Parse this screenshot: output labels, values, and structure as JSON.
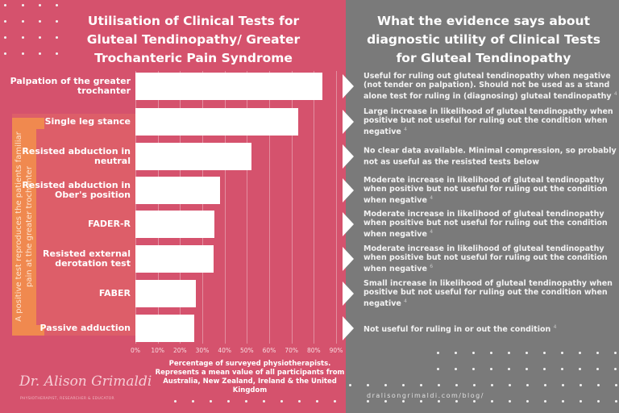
{
  "left_title": "Utilisation of Clinical Tests for Gluteal Tendinopathy/ Greater Trochanteric Pain Syndrome",
  "right_title": "What the evidence says about diagnostic utility of Clinical Tests for Gluteal Tendinopathy",
  "bracket_text": "A positive test reproduces the patients familiar pain at the greater trochanter",
  "colors": {
    "left_bg": "#d5526d",
    "right_bg": "#7a7a7a",
    "bracket": "#f0894f",
    "bar": "#ffffff"
  },
  "chart_data": {
    "type": "bar",
    "orientation": "horizontal",
    "categories": [
      "Palpation of the greater trochanter",
      "Single leg stance",
      "Resisted abduction in neutral",
      "Resisted abduction in Ober's position",
      "FADER-R",
      "Resisted external derotation test",
      "FABER",
      "Passive adduction"
    ],
    "values": [
      84,
      73,
      52,
      38,
      35.5,
      35,
      27,
      26.5
    ],
    "xlim": [
      0,
      90
    ],
    "tick_labels": [
      "0%",
      "10%",
      "20%",
      "30%",
      "40%",
      "50%",
      "60%",
      "70%",
      "80%",
      "90%"
    ],
    "xlabel": "Percentage of surveyed physiotherapists. Represents a mean value of all participants from Australia, New Zealand, Ireland & the United Kingdom",
    "grid": true
  },
  "evidence": [
    {
      "text": "Useful for ruling out gluteal tendinopathy when negative (not tender on palpation). Should not be used as a stand alone test for ruling in (diagnosing) gluteal tendinopathy",
      "ref": "4"
    },
    {
      "text": "Large increase in likelihood of gluteal tendinopathy when positive but not useful for ruling out the condition when negative",
      "ref": "4"
    },
    {
      "text": "No clear data available. Minimal compression, so probably not as useful as the resisted tests below",
      "ref": ""
    },
    {
      "text": "Moderate increase in likelihood of gluteal tendinopathy when positive but not useful for ruling out the condition when negative",
      "ref": "4"
    },
    {
      "text": "Moderate increase in likelihood of gluteal tendinopathy when positive but not useful for ruling out the condition when negative",
      "ref": "4"
    },
    {
      "text": "Moderate increase in likelihood of gluteal tendinopathy when positive but not useful for ruling out the condition when negative",
      "ref": "6"
    },
    {
      "text": "Small increase in likelihood of gluteal tendinopathy when positive but not useful for ruling out the condition when negative",
      "ref": "4"
    },
    {
      "text": "Not useful for ruling in or out the condition",
      "ref": "4"
    }
  ],
  "logo": {
    "name": "Dr. Alison Grimaldi",
    "tagline": "PHYSIOTHERAPIST, RESEARCHER & EDUCATOR"
  },
  "url": "dralisongrimaldi.com/blog/"
}
